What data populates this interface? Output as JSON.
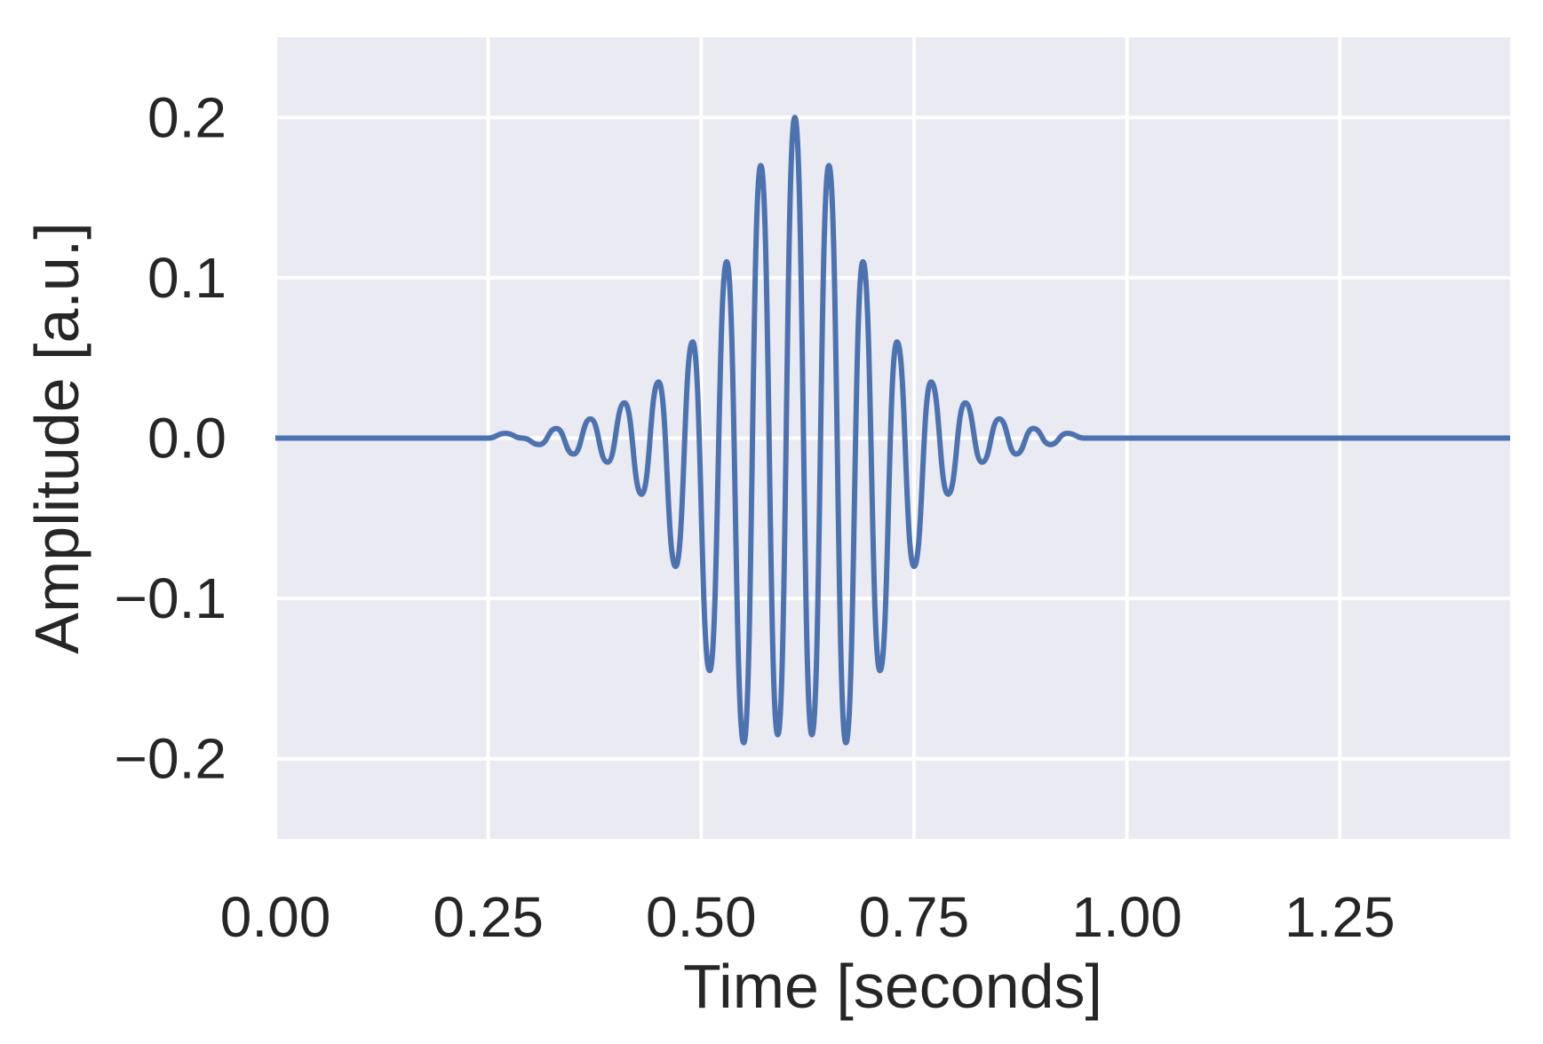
{
  "chart_data": {
    "type": "line",
    "title": "",
    "xlabel": "Time [seconds]",
    "ylabel": "Amplitude [a.u.]",
    "xlim": [
      0.0,
      1.45
    ],
    "ylim": [
      -0.25,
      0.25
    ],
    "x_ticks": [
      0.0,
      0.25,
      0.5,
      0.75,
      1.0,
      1.25
    ],
    "x_tick_labels": [
      "0.00",
      "0.25",
      "0.50",
      "0.75",
      "1.00",
      "1.25"
    ],
    "y_ticks": [
      -0.2,
      -0.1,
      0.0,
      0.1,
      0.2
    ],
    "y_tick_labels": [
      "−0.2",
      "−0.1",
      "0.0",
      "0.1",
      "0.2"
    ],
    "grid": true,
    "background": "#EAEAF2",
    "line_color": "#4C72B0",
    "series": [
      {
        "x": [
          0.0,
          0.25,
          0.27,
          0.29,
          0.31,
          0.33,
          0.35,
          0.37,
          0.39,
          0.41,
          0.43,
          0.45,
          0.47,
          0.49,
          0.51,
          0.53,
          0.55,
          0.57,
          0.59,
          0.61,
          0.63,
          0.65,
          0.67,
          0.69,
          0.71,
          0.73,
          0.75,
          0.77,
          0.79,
          0.81,
          0.83,
          0.85,
          0.87,
          0.89,
          0.91,
          0.93,
          0.95,
          0.97,
          0.99,
          1.01,
          1.03,
          1.05,
          1.07,
          1.09,
          1.11,
          1.13,
          1.15,
          1.17,
          1.19,
          1.21,
          1.45
        ],
        "y": [
          0.0,
          0.0,
          0.003,
          0.0,
          -0.004,
          0.006,
          -0.01,
          0.012,
          -0.015,
          0.022,
          -0.035,
          0.035,
          -0.08,
          0.06,
          -0.145,
          0.11,
          -0.19,
          0.17,
          -0.185,
          0.2,
          -0.185,
          0.17,
          -0.19,
          0.11,
          -0.145,
          0.06,
          -0.08,
          0.035,
          -0.035,
          0.022,
          -0.015,
          0.012,
          -0.01,
          0.006,
          -0.004,
          0.003,
          0.0,
          0.0,
          0.0,
          0.0,
          0.0,
          0.0,
          0.0,
          0.0,
          0.0,
          0.0,
          0.0,
          0.0,
          0.0,
          0.0,
          0.0
        ]
      }
    ]
  }
}
